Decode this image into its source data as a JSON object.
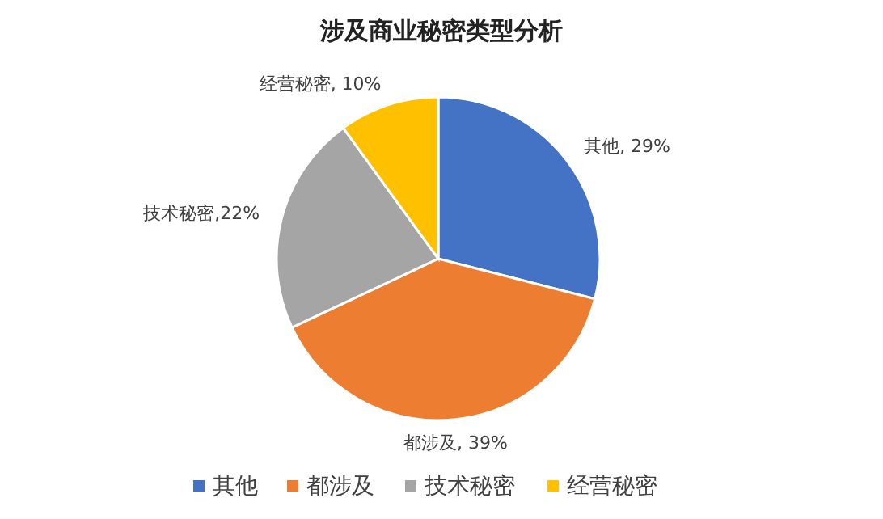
{
  "chart_data": {
    "type": "pie",
    "title": "涉及商业秘密类型分析",
    "categories": [
      "其他",
      "都涉及",
      "技术秘密",
      "经营秘密"
    ],
    "values": [
      29,
      39,
      22,
      10
    ],
    "colors": [
      "#4472c4",
      "#ed7d31",
      "#a5a5a5",
      "#ffc000"
    ],
    "value_labels": [
      "其他, 29%",
      "都涉及, 39%",
      "技术秘密,22%",
      "经营秘密, 10%"
    ],
    "legend": "bottom"
  }
}
